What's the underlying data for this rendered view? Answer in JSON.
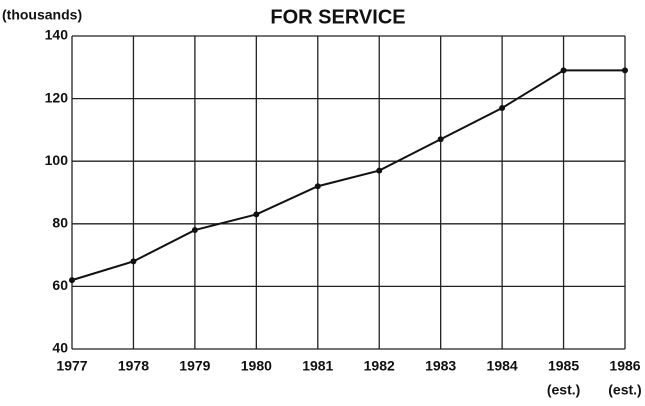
{
  "chart_data": {
    "type": "line",
    "title": "FOR SERVICE",
    "y_axis_label": "(thousands)",
    "categories": [
      "1977",
      "1978",
      "1979",
      "1980",
      "1981",
      "1982",
      "1983",
      "1984",
      "1985",
      "1986"
    ],
    "annotations": [
      {
        "category_index": 8,
        "text": "(est.)"
      },
      {
        "category_index": 9,
        "text": "(est.)"
      }
    ],
    "series": [
      {
        "color": "#111111",
        "values": [
          62,
          68,
          78,
          83,
          92,
          97,
          107,
          117,
          129,
          129
        ]
      }
    ],
    "ylim": [
      40,
      140
    ],
    "yticks": [
      40,
      60,
      80,
      100,
      120,
      140
    ],
    "grid": true
  }
}
